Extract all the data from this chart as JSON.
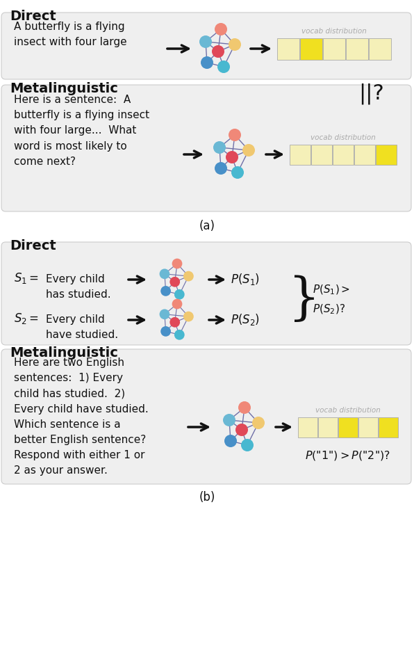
{
  "bg_color": "#ffffff",
  "box_bg": "#efefef",
  "node_top": "#f08878",
  "node_left_top": "#6ab8d4",
  "node_right": "#f0c870",
  "node_center": "#e04858",
  "node_left_bot": "#4890c8",
  "node_bottom": "#48b8d0",
  "edge_color": "#7070a8",
  "bar_yellow": "#f0e020",
  "bar_light": "#f5f0b8",
  "arrow_color": "#111111",
  "text_color": "#111111",
  "label_color": "#aaaaaa",
  "section_a_label": "(a)",
  "section_b_label": "(b)",
  "direct_label": "Direct",
  "metalinguistic_label": "Metalinguistic",
  "vocab_dist_text": "vocab distribution",
  "direct_text_a": "A butterfly is a flying\ninsect with four large",
  "meta_text_a": "Here is a sentence:  A\nbutterfly is a flying insect\nwith four large...  What\nword is most likely to\ncome next?",
  "direct_s1_text": "Every child\nhas studied.",
  "direct_s2_text": "Every child\nhave studied.",
  "meta_text_b": "Here are two English\nsentences:  1) Every\nchild has studied.  2)\nEvery child have studied.\nWhich sentence is a\nbetter English sentence?\nRespond with either 1 or\n2 as your answer."
}
